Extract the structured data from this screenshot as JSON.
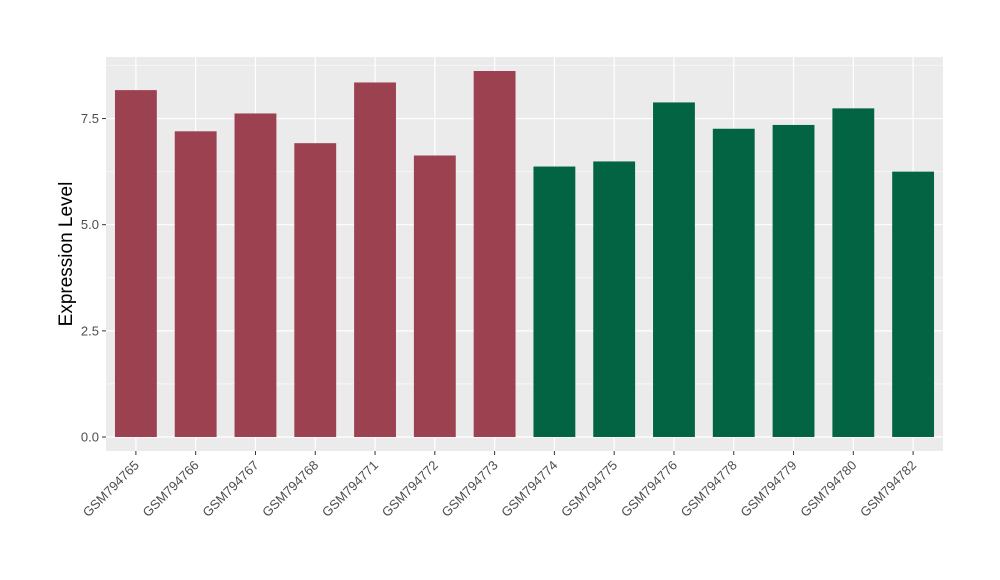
{
  "chart_data": {
    "type": "bar",
    "title": "",
    "xlabel": "",
    "ylabel": "Expression Level",
    "ylim": [
      -0.33,
      8.95
    ],
    "yticks": [
      0.0,
      2.5,
      5.0,
      7.5
    ],
    "ytick_labels": [
      "0.0",
      "2.5",
      "5.0",
      "7.5"
    ],
    "grid": true,
    "legend": "none",
    "categories": [
      "GSM794765",
      "GSM794766",
      "GSM794767",
      "GSM794768",
      "GSM794771",
      "GSM794772",
      "GSM794773",
      "GSM794774",
      "GSM794775",
      "GSM794776",
      "GSM794778",
      "GSM794779",
      "GSM794780",
      "GSM794782"
    ],
    "values": [
      8.17,
      7.2,
      7.62,
      6.92,
      8.35,
      6.63,
      8.62,
      6.37,
      6.49,
      7.88,
      7.26,
      7.35,
      7.74,
      6.25
    ],
    "bar_colors": [
      "#9b4150",
      "#9b4150",
      "#9b4150",
      "#9b4150",
      "#9b4150",
      "#9b4150",
      "#9b4150",
      "#036444",
      "#036444",
      "#036444",
      "#036444",
      "#036444",
      "#036444",
      "#036444"
    ],
    "panel_background": "#ebebeb",
    "gridline_color": "#ffffff"
  }
}
